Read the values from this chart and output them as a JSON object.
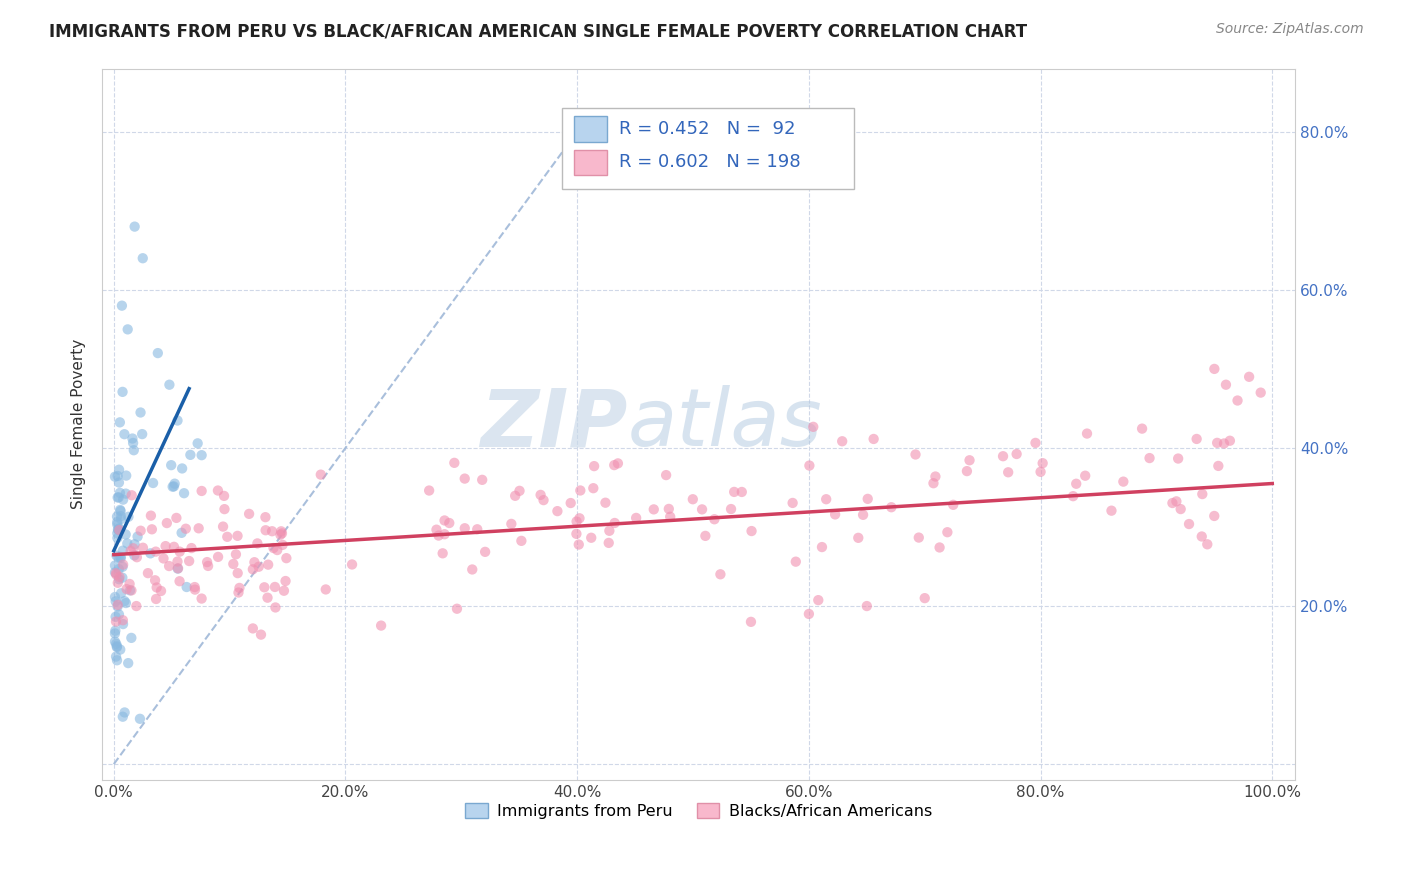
{
  "title": "IMMIGRANTS FROM PERU VS BLACK/AFRICAN AMERICAN SINGLE FEMALE POVERTY CORRELATION CHART",
  "source": "Source: ZipAtlas.com",
  "ylabel": "Single Female Poverty",
  "watermark_zip": "ZIP",
  "watermark_atlas": "atlas",
  "xtick_labels": [
    "0.0%",
    "20.0%",
    "40.0%",
    "60.0%",
    "80.0%",
    "100.0%"
  ],
  "ytick_labels_right": [
    "20.0%",
    "40.0%",
    "60.0%",
    "80.0%"
  ],
  "blue_R": 0.452,
  "blue_N": 92,
  "pink_R": 0.602,
  "pink_N": 198,
  "blue_dot_color": "#88b8e0",
  "pink_dot_color": "#f090b0",
  "blue_line_color": "#1a5fa8",
  "pink_line_color": "#d04060",
  "diag_color": "#a0b8d8",
  "legend_blue_face": "#b8d4ee",
  "legend_pink_face": "#f8b8cc",
  "legend_blue_edge": "#7aa8d0",
  "legend_pink_edge": "#e090a8",
  "title_fontsize": 12,
  "source_fontsize": 10,
  "tick_fontsize": 11,
  "legend_fontsize": 13,
  "dot_alpha": 0.6,
  "dot_size": 55
}
